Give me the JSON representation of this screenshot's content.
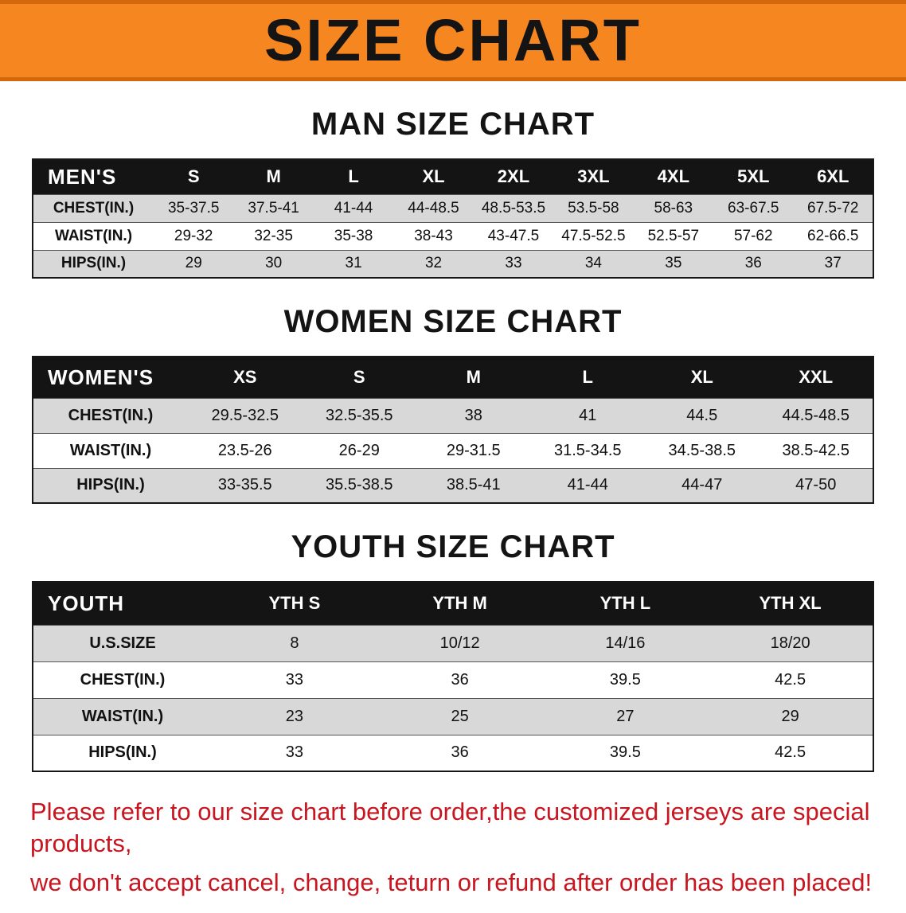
{
  "banner": {
    "title": "SIZE CHART"
  },
  "colors": {
    "banner_orange": "#f6861f",
    "banner_border": "#d2670b",
    "table_header_black": "#141414",
    "band_gray": "#d8d8d8",
    "disclaimer_red": "#c7161f"
  },
  "chart_data": [
    {
      "type": "table",
      "id": "men",
      "title": "MAN SIZE CHART",
      "columns": [
        "MEN'S",
        "S",
        "M",
        "L",
        "XL",
        "2XL",
        "3XL",
        "4XL",
        "5XL",
        "6XL"
      ],
      "rows": [
        [
          "CHEST(IN.)",
          "35-37.5",
          "37.5-41",
          "41-44",
          "44-48.5",
          "48.5-53.5",
          "53.5-58",
          "58-63",
          "63-67.5",
          "67.5-72"
        ],
        [
          "WAIST(IN.)",
          "29-32",
          "32-35",
          "35-38",
          "38-43",
          "43-47.5",
          "47.5-52.5",
          "52.5-57",
          "57-62",
          "62-66.5"
        ],
        [
          "HIPS(IN.)",
          "29",
          "30",
          "31",
          "32",
          "33",
          "34",
          "35",
          "36",
          "37"
        ]
      ]
    },
    {
      "type": "table",
      "id": "women",
      "title": "WOMEN SIZE CHART",
      "columns": [
        "WOMEN'S",
        "XS",
        "S",
        "M",
        "L",
        "XL",
        "XXL"
      ],
      "rows": [
        [
          "CHEST(IN.)",
          "29.5-32.5",
          "32.5-35.5",
          "38",
          "41",
          "44.5",
          "44.5-48.5"
        ],
        [
          "WAIST(IN.)",
          "23.5-26",
          "26-29",
          "29-31.5",
          "31.5-34.5",
          "34.5-38.5",
          "38.5-42.5"
        ],
        [
          "HIPS(IN.)",
          "33-35.5",
          "35.5-38.5",
          "38.5-41",
          "41-44",
          "44-47",
          "47-50"
        ]
      ]
    },
    {
      "type": "table",
      "id": "youth",
      "title": "YOUTH SIZE CHART",
      "columns": [
        "YOUTH",
        "YTH S",
        "YTH M",
        "YTH L",
        "YTH XL"
      ],
      "rows": [
        [
          "U.S.SIZE",
          "8",
          "10/12",
          "14/16",
          "18/20"
        ],
        [
          "CHEST(IN.)",
          "33",
          "36",
          "39.5",
          "42.5"
        ],
        [
          "WAIST(IN.)",
          "23",
          "25",
          "27",
          "29"
        ],
        [
          "HIPS(IN.)",
          "33",
          "36",
          "39.5",
          "42.5"
        ]
      ]
    }
  ],
  "disclaimer": {
    "lines": [
      "Please refer to our size chart before order,the customized jerseys are special products,",
      "we don't accept cancel, change, teturn or refund after order has been placed!"
    ]
  }
}
